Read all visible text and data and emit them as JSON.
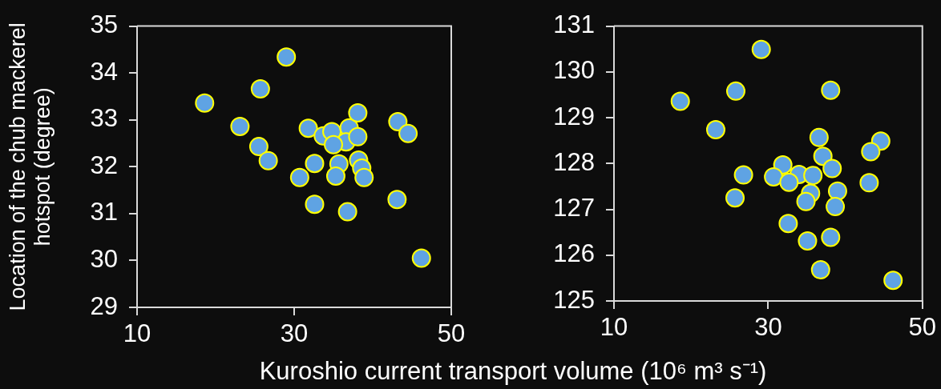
{
  "chart_data": [
    {
      "type": "scatter",
      "xlabel": "Kuroshio current transport volume (10⁶ m³ s⁻¹)",
      "ylabel": "Location of the chub mackerel hotspot (degree)",
      "color": "#5fa3e3",
      "marker": "circle",
      "grid": false,
      "legend": false,
      "x": [
        29.0,
        25.7,
        18.6,
        23.1,
        25.5,
        26.7,
        31.8,
        33.7,
        34.8,
        37.0,
        38.1,
        36.6,
        35.0,
        38.1,
        43.2,
        44.5,
        32.6,
        35.7,
        38.2,
        38.6,
        38.9,
        35.3,
        30.7,
        32.6,
        36.8,
        43.1,
        46.2
      ],
      "values": [
        34.34,
        33.66,
        33.36,
        32.86,
        32.43,
        32.13,
        32.82,
        32.66,
        32.75,
        32.83,
        33.15,
        32.53,
        32.47,
        32.64,
        32.96,
        32.71,
        32.07,
        32.06,
        32.14,
        31.97,
        31.77,
        31.8,
        31.77,
        31.2,
        31.04,
        31.3,
        30.05
      ],
      "xlim": [
        10,
        50
      ],
      "xticks": [
        10,
        30,
        50
      ],
      "ylim": [
        29,
        35
      ],
      "yticks": [
        29,
        30,
        31,
        32,
        33,
        34,
        35
      ]
    },
    {
      "type": "scatter",
      "color": "#5fa3e3",
      "marker": "circle",
      "grid": false,
      "legend": false,
      "x": [
        29.1,
        18.6,
        25.8,
        38.1,
        23.2,
        36.6,
        44.6,
        43.3,
        37.1,
        38.3,
        31.9,
        30.7,
        34.0,
        35.8,
        32.7,
        26.8,
        43.1,
        35.5,
        34.9,
        39.0,
        38.7,
        25.7,
        32.6,
        35.1,
        38.1,
        36.8,
        46.2
      ],
      "values": [
        130.49,
        129.36,
        129.58,
        129.6,
        128.74,
        128.57,
        128.49,
        128.26,
        128.16,
        127.89,
        127.97,
        127.71,
        127.76,
        127.74,
        127.59,
        127.75,
        127.58,
        127.35,
        127.17,
        127.4,
        127.06,
        127.25,
        126.69,
        126.31,
        126.39,
        125.68,
        125.45
      ],
      "xlim": [
        10,
        50
      ],
      "xticks": [
        10,
        30,
        50
      ],
      "ylim": [
        125,
        131
      ],
      "yticks": [
        125,
        126,
        127,
        128,
        129,
        130,
        131
      ]
    }
  ]
}
